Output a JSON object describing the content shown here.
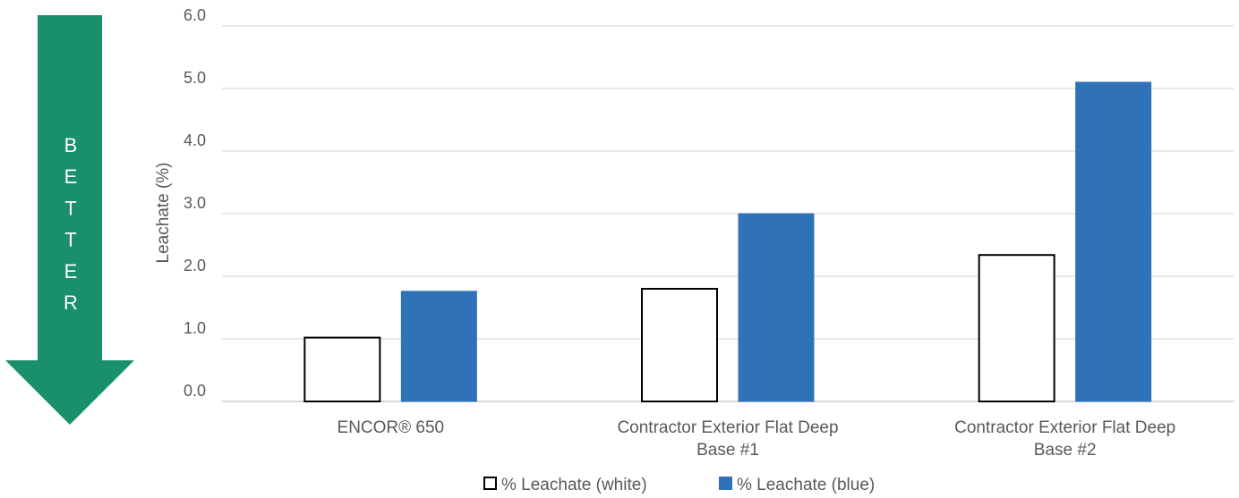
{
  "indicator": {
    "label": "BETTER",
    "color": "#1a8f6c"
  },
  "chart_data": {
    "type": "bar",
    "title": "",
    "ylabel": "Leachate (%)",
    "xlabel": "",
    "ylim": [
      0,
      6
    ],
    "yticks": [
      "0.0",
      "1.0",
      "2.0",
      "3.0",
      "4.0",
      "5.0",
      "6.0"
    ],
    "grid": true,
    "legend_position": "bottom",
    "categories": [
      [
        "ENCOR® 650"
      ],
      [
        "Contractor Exterior Flat Deep",
        "Base #1"
      ],
      [
        "Contractor Exterior Flat Deep",
        "Base #2"
      ]
    ],
    "series": [
      {
        "name": "% Leachate (white)",
        "values": [
          1.02,
          1.8,
          2.34
        ],
        "fill": "#ffffff",
        "stroke": "#000000"
      },
      {
        "name": "% Leachate (blue)",
        "values": [
          1.76,
          3.0,
          5.1
        ],
        "fill": "#2f72b8",
        "stroke": "#2f72b8"
      }
    ]
  }
}
